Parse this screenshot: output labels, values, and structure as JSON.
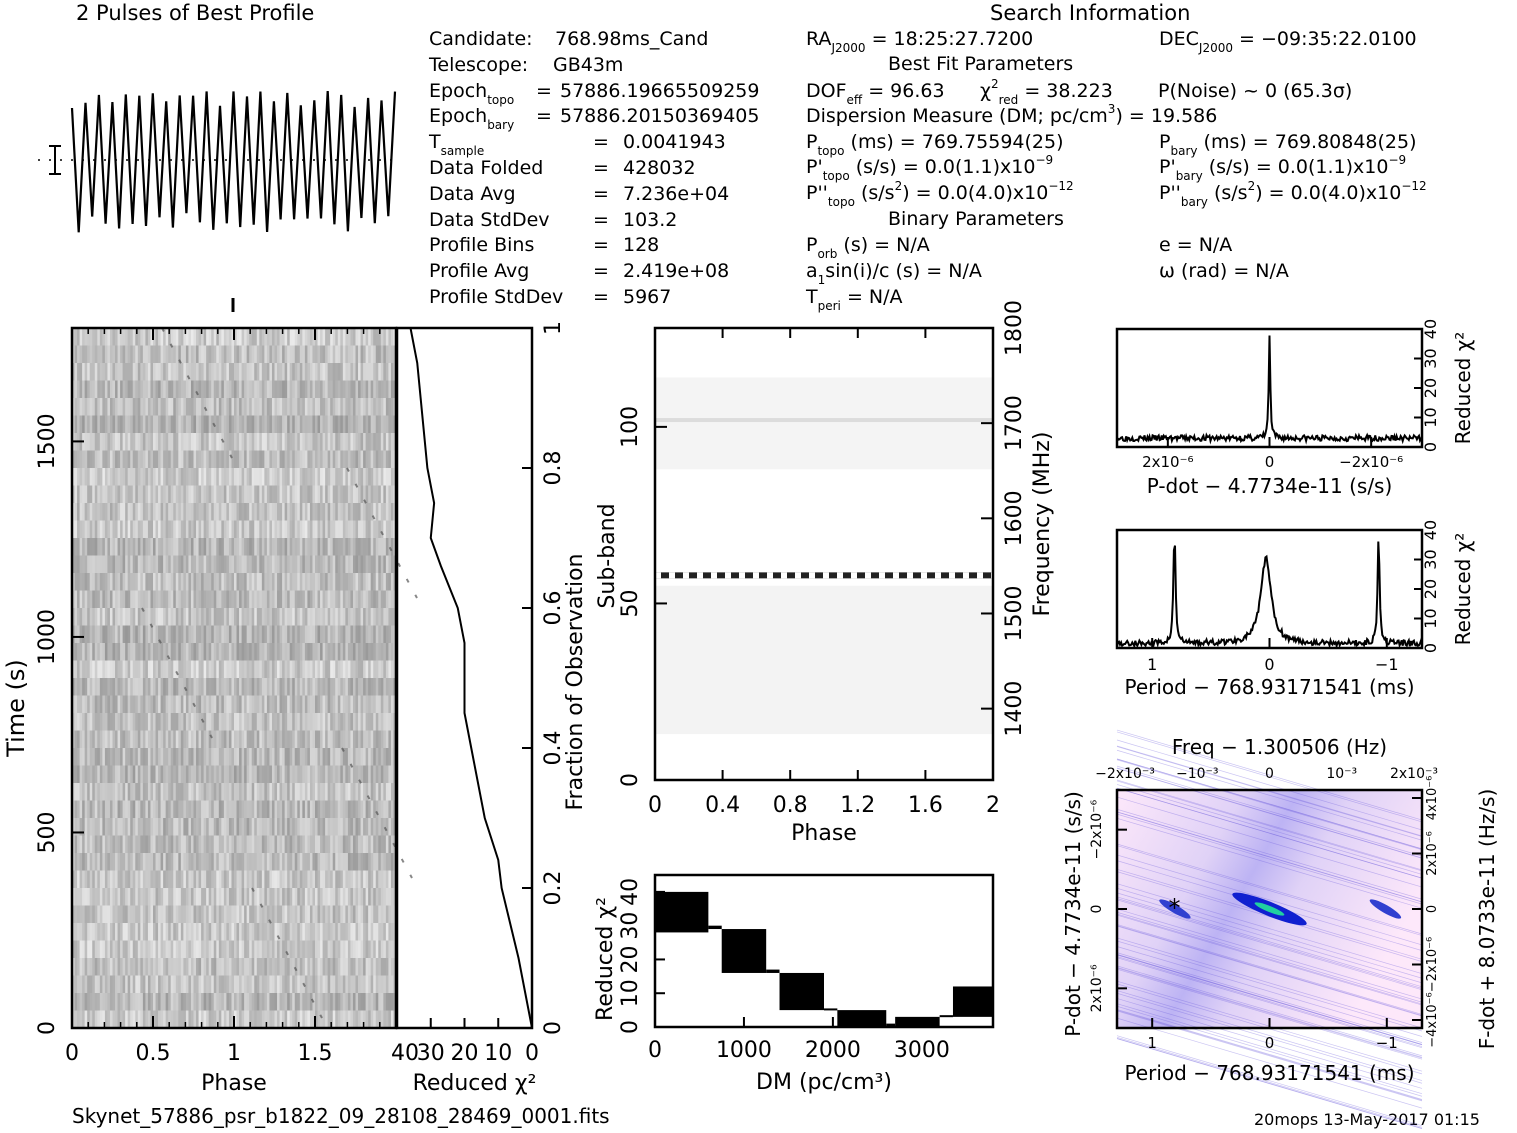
{
  "profile": {
    "title": "2 Pulses of Best Profile"
  },
  "candidate_info": [
    {
      "label": "Candidate:",
      "value": "768.98ms_Cand"
    },
    {
      "label": "Telescope:",
      "value": "GB43m"
    },
    {
      "label": "Epoch",
      "label_sub": "topo",
      "eq": "=",
      "value": "57886.19665509259"
    },
    {
      "label": "Epoch",
      "label_sub": "bary",
      "eq": "=",
      "value": "57886.20150369405"
    },
    {
      "label": "T",
      "label_sub": "sample",
      "eq": "=",
      "value": "0.0041943"
    },
    {
      "label": "Data Folded",
      "eq": "=",
      "value": "428032"
    },
    {
      "label": "Data Avg",
      "eq": "=",
      "value": "7.236e+04"
    },
    {
      "label": "Data StdDev",
      "eq": "=",
      "value": "103.2"
    },
    {
      "label": "Profile Bins",
      "eq": "=",
      "value": "128"
    },
    {
      "label": "Profile Avg",
      "eq": "=",
      "value": "2.419e+08"
    },
    {
      "label": "Profile StdDev",
      "eq": "=",
      "value": "5967"
    }
  ],
  "search_info": {
    "title": "Search Information",
    "ra": {
      "label": "RA",
      "sub": "J2000",
      "value": "= 18:25:27.7200"
    },
    "dec": {
      "label": "DEC",
      "sub": "J2000",
      "value": "= −09:35:22.0100"
    },
    "best_fit_title": "Best Fit Parameters",
    "dof": {
      "label": "DOF",
      "sub": "eff",
      "value": "= 96.63"
    },
    "chi2": {
      "label": "χ",
      "sup": "2",
      "sub": "red",
      "value": "= 38.223"
    },
    "pnoise": "P(Noise) ~ 0   (65.3σ)",
    "dm_line": {
      "text": "Dispersion Measure (DM; pc/cm",
      "sup": "3",
      "tail": ") = 19.586"
    },
    "p_topo": {
      "label": "P",
      "sub": "topo",
      "value": "(ms) =  769.75594(25)"
    },
    "p_bary": {
      "label": "P",
      "sub": "bary",
      "value": "(ms) =  769.80848(25)"
    },
    "pd_topo": {
      "label": "P'",
      "sub": "topo",
      "value": "(s/s) = 0.0(1.1)x10",
      "sup": "−9"
    },
    "pd_bary": {
      "label": "P'",
      "sub": "bary",
      "value": "(s/s) = 0.0(1.1)x10",
      "sup": "−9"
    },
    "pdd_topo": {
      "label": "P''",
      "sub": "topo",
      "value_a": "(s/s",
      "sup_a": "2",
      "value_b": ") = 0.0(4.0)x10",
      "sup": "−12"
    },
    "pdd_bary": {
      "label": "P''",
      "sub": "bary",
      "value_a": "(s/s",
      "sup_a": "2",
      "value_b": ") = 0.0(4.0)x10",
      "sup": "−12"
    },
    "binary_title": "Binary Parameters",
    "porb": {
      "label": "P",
      "sub": "orb",
      "value": "(s) = N/A"
    },
    "ecc": "e = N/A",
    "a1": {
      "label": "a",
      "sub": "1",
      "value": "sin(i)/c (s) = N/A"
    },
    "omega": "ω (rad) = N/A",
    "tperi": {
      "label": "T",
      "sub": "peri",
      "value": "= N/A"
    }
  },
  "footer": {
    "filename": "Skynet_57886_psr_b1822_09_28108_28469_0001.fits",
    "stamp": "20mops 13-May-2017 01:15"
  },
  "chart_data": [
    {
      "id": "profile",
      "type": "line",
      "title": "2 Pulses of Best Profile",
      "xlabel": "",
      "ylabel": "",
      "cycles_shown": 24,
      "note": "noise-like oscillating profile spanning 2 phase turns, dotted mean line with error bar"
    },
    {
      "id": "time-phase",
      "type": "heatmap",
      "xlabel": "Phase",
      "ylabel": "Time (s)",
      "xlim": [
        0,
        2
      ],
      "ylim": [
        0,
        1800
      ],
      "xticks": [
        "0",
        "0.5",
        "1",
        "1.5"
      ],
      "yticks": [
        "0",
        "500",
        "1000",
        "1500"
      ],
      "colormap": "grayscale"
    },
    {
      "id": "time-chi2",
      "type": "line",
      "xlabel": "Reduced χ²",
      "ylabel": "Fraction of Observation",
      "xlim": [
        40,
        0
      ],
      "ylim": [
        0,
        1
      ],
      "xticks": [
        "40",
        "30",
        "20",
        "10",
        "0"
      ],
      "yticks": [
        "0",
        "0.2",
        "0.4",
        "0.6",
        "0.8",
        "1"
      ],
      "x": [
        0,
        2,
        4,
        6,
        8,
        9,
        10,
        14,
        18,
        20,
        20,
        22,
        27,
        30,
        29,
        31,
        32,
        33,
        34,
        36
      ],
      "y": [
        0,
        0.05,
        0.1,
        0.14,
        0.18,
        0.2,
        0.24,
        0.3,
        0.4,
        0.45,
        0.55,
        0.6,
        0.66,
        0.7,
        0.75,
        0.8,
        0.85,
        0.9,
        0.95,
        1.0
      ]
    },
    {
      "id": "subband-phase",
      "type": "heatmap",
      "xlabel": "Phase",
      "ylabel": "Sub-band",
      "y2label": "Frequency (MHz)",
      "xlim": [
        0,
        2
      ],
      "ylim": [
        0,
        128
      ],
      "y2lim": [
        1325,
        1800
      ],
      "xticks": [
        "0",
        "0.4",
        "0.8",
        "1.2",
        "1.6",
        "2"
      ],
      "yticks": [
        "0",
        "50",
        "100"
      ],
      "y2ticks": [
        "1400",
        "1500",
        "1600",
        "1700",
        "1800"
      ],
      "bright_band_subband": 58,
      "colormap": "grayscale"
    },
    {
      "id": "dm-chi2",
      "type": "area",
      "xlabel": "DM (pc/cm³)",
      "ylabel": "Reduced χ²",
      "xlim": [
        0,
        3800
      ],
      "ylim": [
        0,
        45
      ],
      "xticks": [
        "0",
        "1000",
        "2000",
        "3000"
      ],
      "yticks": [
        "0",
        "10",
        "20",
        "30",
        "40"
      ],
      "segments": [
        {
          "dm_range": [
            0,
            600
          ],
          "chi2_low": 28,
          "chi2_high": 40
        },
        {
          "dm_range": [
            600,
            750
          ],
          "chi2_low": 29,
          "chi2_high": 30
        },
        {
          "dm_range": [
            750,
            1250
          ],
          "chi2_low": 16,
          "chi2_high": 29
        },
        {
          "dm_range": [
            1250,
            1400
          ],
          "chi2_low": 16,
          "chi2_high": 17
        },
        {
          "dm_range": [
            1400,
            1900
          ],
          "chi2_low": 5,
          "chi2_high": 16
        },
        {
          "dm_range": [
            1900,
            2050
          ],
          "chi2_low": 5,
          "chi2_high": 5.5
        },
        {
          "dm_range": [
            2050,
            2600
          ],
          "chi2_low": 0,
          "chi2_high": 5
        },
        {
          "dm_range": [
            2600,
            2700
          ],
          "chi2_low": 0,
          "chi2_high": 1
        },
        {
          "dm_range": [
            2700,
            3200
          ],
          "chi2_low": 0,
          "chi2_high": 3
        },
        {
          "dm_range": [
            3200,
            3350
          ],
          "chi2_low": 3,
          "chi2_high": 3.5
        },
        {
          "dm_range": [
            3350,
            3800
          ],
          "chi2_low": 3,
          "chi2_high": 12
        }
      ]
    },
    {
      "id": "pdot-chi2",
      "type": "line",
      "xlabel": "P-dot − 4.7734e-11 (s/s)",
      "ylabel": "Reduced χ²",
      "xlim": [
        3e-06,
        -3e-06
      ],
      "ylim": [
        0,
        40
      ],
      "xticks": [
        "2x10⁻⁶",
        "0",
        "−2x10⁻⁶"
      ],
      "yticks": [
        "0",
        "10",
        "20",
        "30",
        "40"
      ],
      "peak": {
        "x": 0,
        "y": 38
      },
      "baseline": 3
    },
    {
      "id": "period-chi2",
      "type": "line",
      "xlabel": "Period − 768.93171541 (ms)",
      "ylabel": "Reduced χ²",
      "xlim": [
        1.3,
        -1.3
      ],
      "ylim": [
        0,
        40
      ],
      "xticks": [
        "1",
        "0",
        "−1"
      ],
      "yticks": [
        "0",
        "10",
        "20",
        "30",
        "40"
      ],
      "peaks": [
        {
          "x": 0.81,
          "y": 38
        },
        {
          "x": 0.03,
          "y": 29
        },
        {
          "x": -0.93,
          "y": 37
        }
      ],
      "baseline": 1
    },
    {
      "id": "period-pdot",
      "type": "heatmap",
      "title": "Freq − 1.300506 (Hz)",
      "xlabel": "Period − 768.93171541 (ms)",
      "ylabel": "P-dot − 4.7734e-11 (s/s)",
      "y2label": "F-dot + 8.0733e-11 (Hz/s)",
      "xlim": [
        1.3,
        -1.3
      ],
      "ylim": [
        3e-06,
        -3e-06
      ],
      "xticks": [
        "1",
        "0",
        "−1"
      ],
      "x2ticks": [
        "−2x10⁻³",
        "−10⁻³",
        "0",
        "10⁻³",
        "2x10⁻³"
      ],
      "yticks": [
        "2x10⁻⁶",
        "0",
        "−2x10⁻⁶"
      ],
      "y2ticks": [
        "−4x10⁻⁶",
        "−2x10⁻⁶",
        "0",
        "2x10⁻⁶",
        "4x10⁻⁶"
      ],
      "best_marker": {
        "x": 0.81,
        "y": 0
      },
      "colors": {
        "low": "#fde8fa",
        "mid": "#8888ee",
        "high": "#1020d0",
        "peak": "#20d0a0"
      }
    }
  ]
}
